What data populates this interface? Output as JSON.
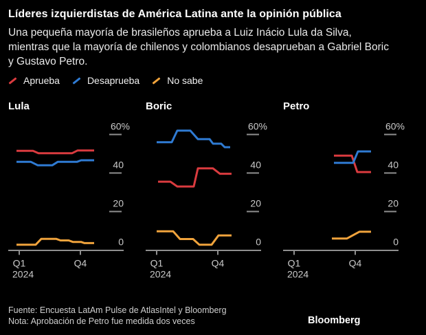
{
  "header": {
    "title": "Líderes izquierdistas de América Latina ante la opinión pública",
    "subtitle": "Una pequeña mayoría de brasileños aprueba a Luiz Inácio Lula da Silva, mientras que la mayoría de chilenos y colombianos desaprueban a Gabriel Boric y Gustavo Petro."
  },
  "legend": {
    "items": [
      {
        "key": "aprueba",
        "label": "Aprueba",
        "color": "#da3b3f"
      },
      {
        "key": "desaprueba",
        "label": "Desaprueba",
        "color": "#2f7bd3"
      },
      {
        "key": "no_sabe",
        "label": "No sabe",
        "color": "#f0a33c"
      }
    ]
  },
  "chart_data": {
    "type": "line",
    "style": "step-line small multiples, dark theme",
    "ylabel": "%",
    "ylim": [
      0,
      65
    ],
    "grid": "right-side tick dashes at 60/40/20/0",
    "y_axis": {
      "ticks": [
        {
          "label": "60%",
          "value": 60
        },
        {
          "label": "40",
          "value": 40
        },
        {
          "label": "20",
          "value": 20
        },
        {
          "label": "0",
          "value": 0
        }
      ]
    },
    "x_axis": {
      "ticks": [
        {
          "label": "Q1",
          "x": 16
        },
        {
          "label": "Q4",
          "x": 105
        }
      ],
      "year": "2024",
      "note": "x in chart-local px, plot width 165 = Q1 2024 through end of 2024"
    },
    "charts": [
      {
        "title": "Lula",
        "series": [
          {
            "key": "aprueba",
            "name": "Aprueba",
            "points": [
              [
                12,
                51.5
              ],
              [
                36,
                51.5
              ],
              [
                44,
                50.3
              ],
              [
                93,
                50.3
              ],
              [
                101,
                51.7
              ],
              [
                125,
                51.7
              ]
            ]
          },
          {
            "key": "desaprueba",
            "name": "Desaprueba",
            "points": [
              [
                12,
                45.8
              ],
              [
                33,
                45.8
              ],
              [
                43,
                44
              ],
              [
                64,
                44
              ],
              [
                72,
                45.8
              ],
              [
                100,
                45.8
              ],
              [
                106,
                46.6
              ],
              [
                125,
                46.6
              ]
            ]
          },
          {
            "key": "no_sabe",
            "name": "No sabe",
            "points": [
              [
                12,
                2.8
              ],
              [
                40,
                2.8
              ],
              [
                48,
                5.8
              ],
              [
                70,
                5.8
              ],
              [
                76,
                5
              ],
              [
                88,
                5
              ],
              [
                94,
                4.2
              ],
              [
                106,
                4.2
              ],
              [
                111,
                3.6
              ],
              [
                125,
                3.6
              ]
            ]
          }
        ]
      },
      {
        "title": "Boric",
        "series": [
          {
            "key": "aprueba",
            "name": "Aprueba",
            "points": [
              [
                18,
                35.5
              ],
              [
                36,
                35.5
              ],
              [
                46,
                33
              ],
              [
                70,
                33
              ],
              [
                76,
                42.4
              ],
              [
                98,
                42.4
              ],
              [
                108,
                39.6
              ],
              [
                125,
                39.6
              ]
            ]
          },
          {
            "key": "desaprueba",
            "name": "Desaprueba",
            "points": [
              [
                16,
                56
              ],
              [
                38,
                56
              ],
              [
                46,
                62
              ],
              [
                65,
                62
              ],
              [
                76,
                57.6
              ],
              [
                93,
                57.6
              ],
              [
                98,
                55.2
              ],
              [
                110,
                55.2
              ],
              [
                115,
                53.4
              ],
              [
                123,
                53.4
              ]
            ]
          },
          {
            "key": "no_sabe",
            "name": "No sabe",
            "points": [
              [
                16,
                9.7
              ],
              [
                40,
                9.7
              ],
              [
                50,
                5.7
              ],
              [
                69,
                5.7
              ],
              [
                78,
                2.8
              ],
              [
                96,
                2.8
              ],
              [
                106,
                7.6
              ],
              [
                125,
                7.6
              ]
            ]
          }
        ]
      },
      {
        "title": "Petro",
        "series": [
          {
            "key": "aprueba",
            "name": "Aprueba",
            "points": [
              [
                74,
                49
              ],
              [
                100,
                49
              ],
              [
                108,
                40.5
              ],
              [
                128,
                40.5
              ]
            ]
          },
          {
            "key": "desaprueba",
            "name": "Desaprueba",
            "points": [
              [
                74,
                45.3
              ],
              [
                102,
                45.3
              ],
              [
                109,
                51.2
              ],
              [
                128,
                51.2
              ]
            ]
          },
          {
            "key": "no_sabe",
            "name": "No sabe",
            "points": [
              [
                71,
                6
              ],
              [
                93,
                6
              ],
              [
                111,
                9.5
              ],
              [
                128,
                9.5
              ]
            ]
          }
        ]
      }
    ]
  },
  "footer": {
    "source": "Fuente: Encuesta LatAm Pulse de AtlasIntel y Bloomberg",
    "note": "Nota: Aprobación de Petro fue medida dos veces",
    "brand": "Bloomberg"
  },
  "theme": {
    "background": "#000000",
    "axis_line": "#8f8f8f",
    "axis_text": "#c9c9c9",
    "title_text": "#ffffff",
    "body_text": "#e9e9e9",
    "footer_text": "#cfcfcf"
  }
}
